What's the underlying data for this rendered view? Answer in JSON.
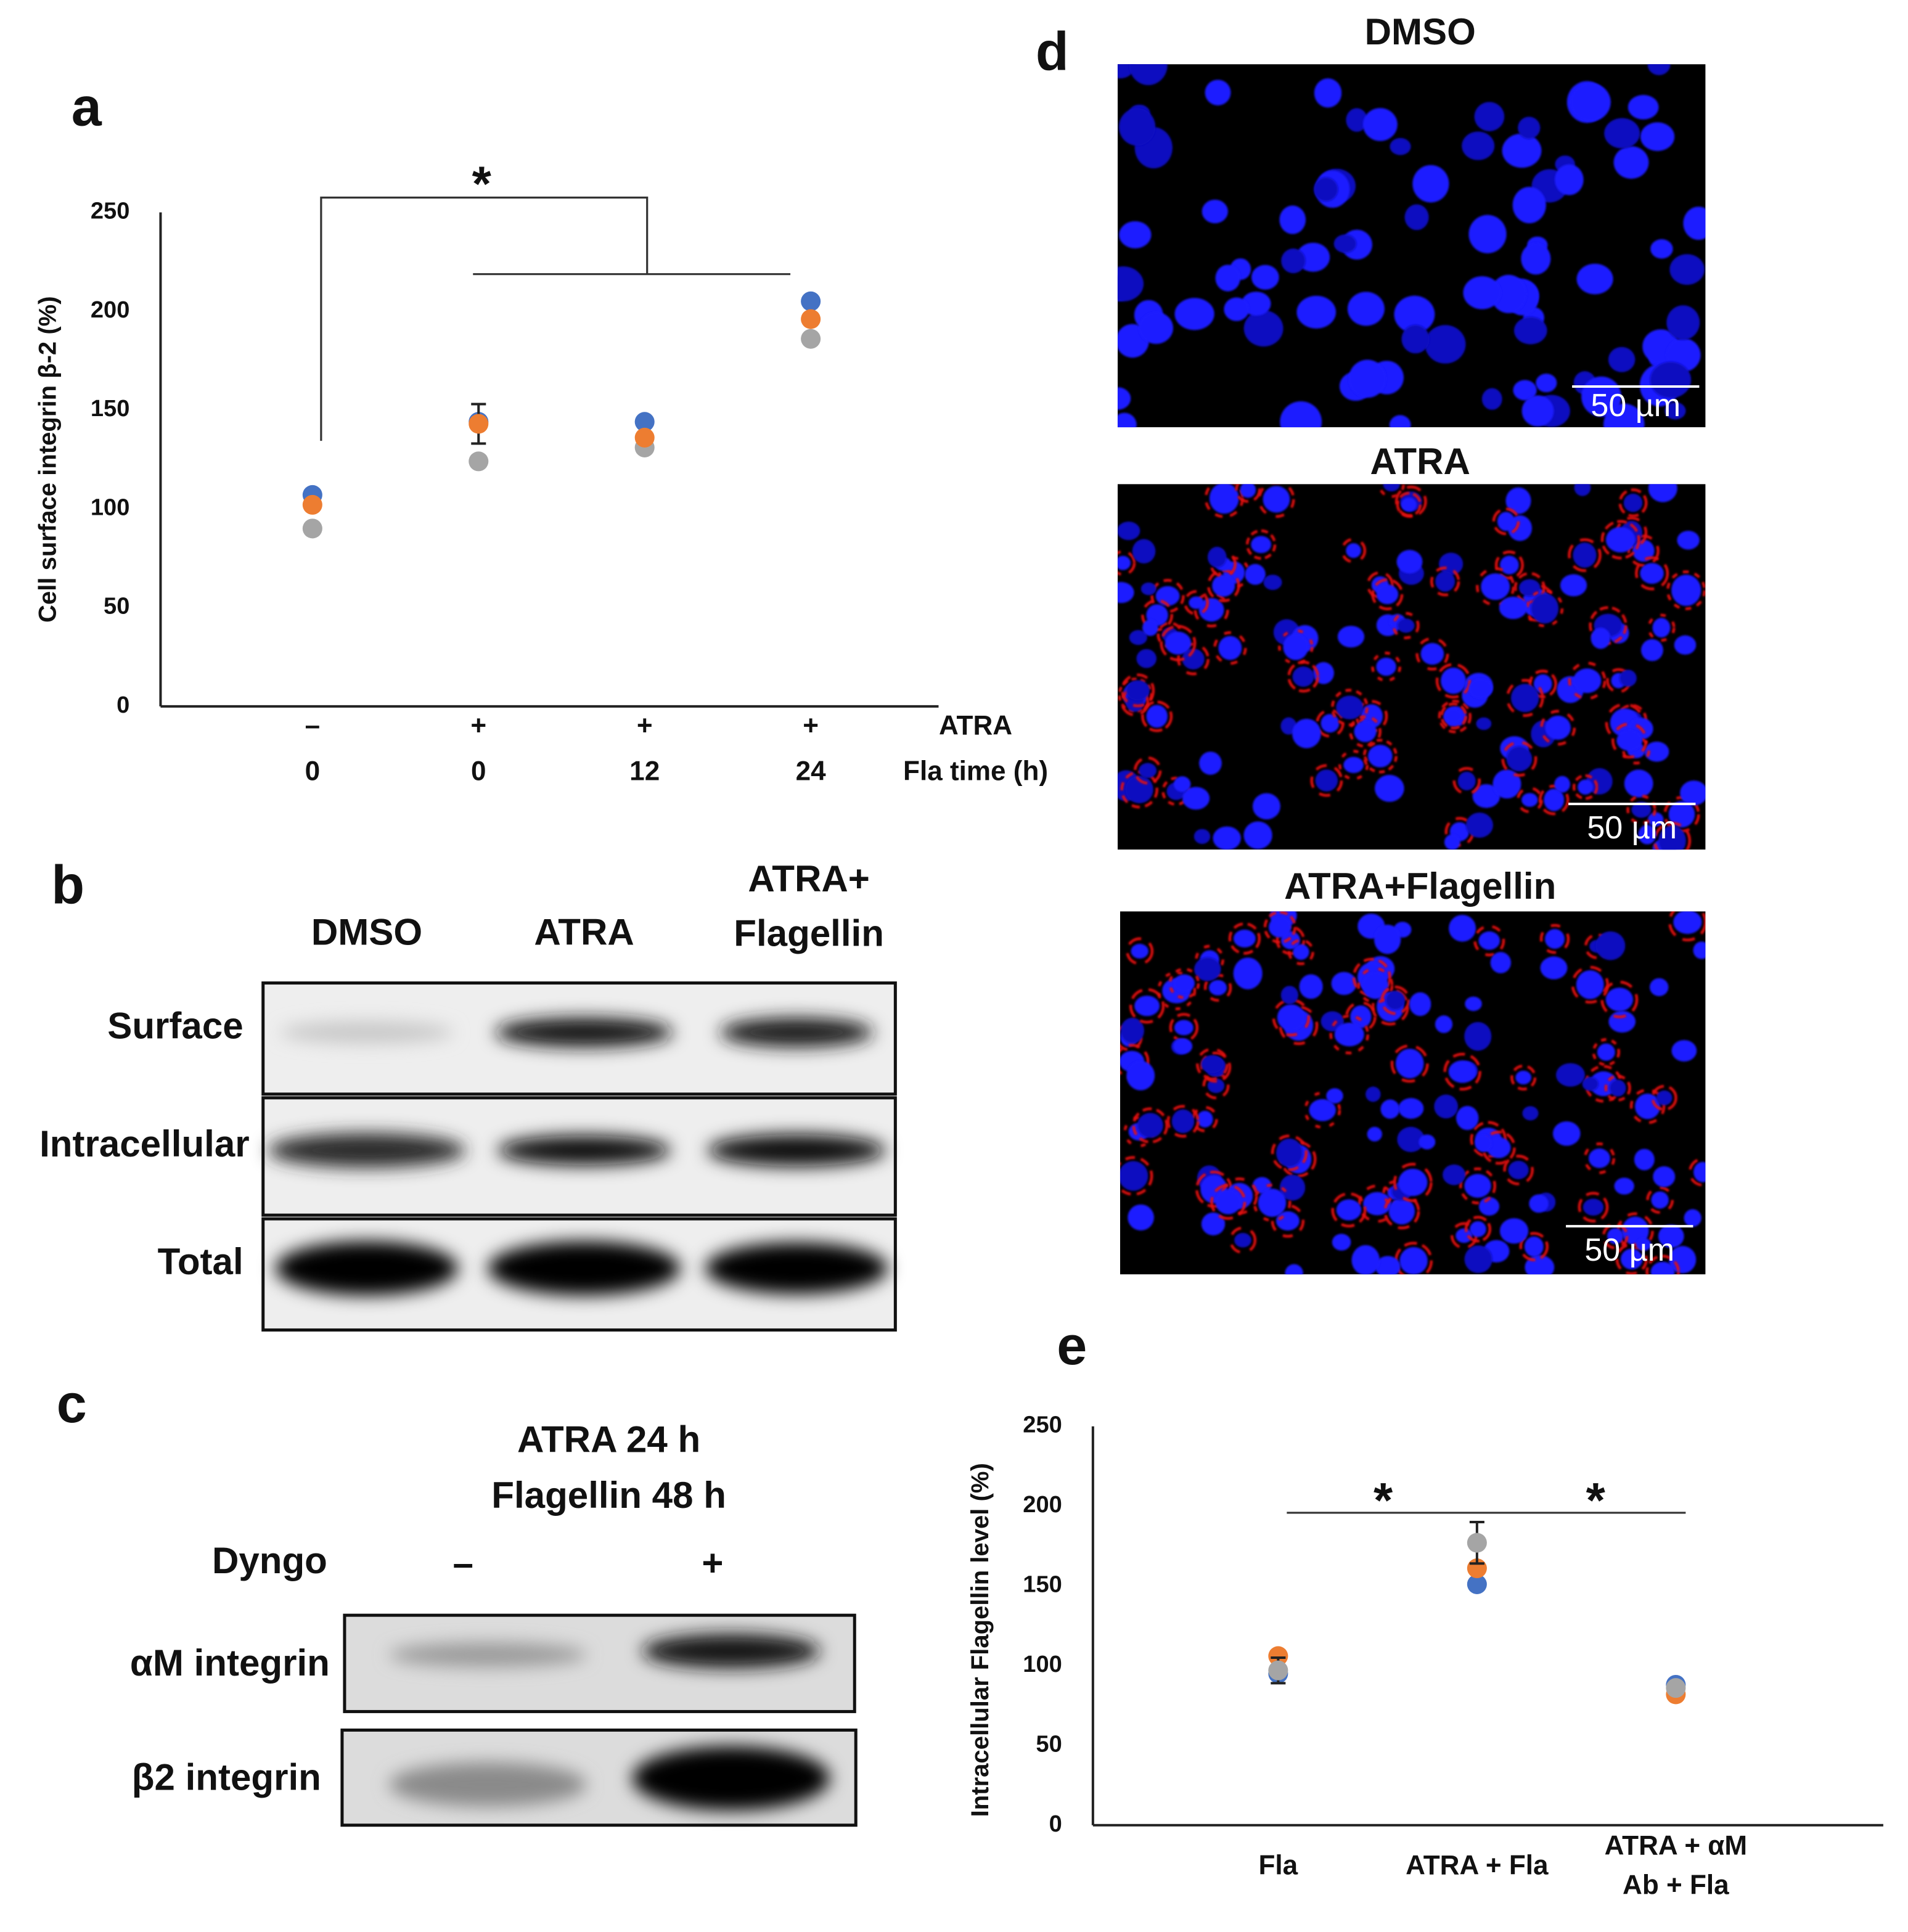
{
  "panel_labels": [
    "a",
    "b",
    "c",
    "d",
    "e"
  ],
  "chart_data": [
    {
      "type": "scatter",
      "y_label": "Cell surface integrin β-2 (%)",
      "ylim": [
        0,
        250
      ],
      "yticks": [
        0,
        50,
        100,
        150,
        200,
        250
      ],
      "atra_label": "ATRA",
      "atra_row": [
        "–",
        "+",
        "+",
        "+"
      ],
      "categories_label": "Fla time (h)",
      "categories": [
        [
          "0"
        ],
        [
          "0"
        ],
        [
          "12"
        ],
        [
          "24"
        ]
      ],
      "series": [
        {
          "color": "#4472c4",
          "values": [
            107,
            144,
            144,
            205
          ]
        },
        {
          "color": "#a5a5a5",
          "values": [
            90,
            124,
            131,
            186
          ]
        },
        {
          "color": "#ed7d31",
          "values": [
            102,
            143,
            136,
            196
          ],
          "errors": [
            null,
            10,
            null,
            null
          ]
        }
      ],
      "annotations": [
        "*"
      ]
    },
    {
      "type": "scatter",
      "y_label": "Intracellular  Flagellin level (%)",
      "ylim": [
        0,
        250
      ],
      "yticks": [
        0,
        50,
        100,
        150,
        200,
        250
      ],
      "categories": [
        [
          "Fla"
        ],
        [
          "ATRA + Fla"
        ],
        [
          "ATRA + αM",
          "Ab + Fla"
        ]
      ],
      "series": [
        {
          "color": "#4472c4",
          "values": [
            95,
            151,
            88
          ]
        },
        {
          "color": "#ed7d31",
          "values": [
            106,
            161,
            82
          ]
        },
        {
          "color": "#a5a5a5",
          "values": [
            97,
            177,
            86
          ],
          "errors": [
            8,
            13,
            null
          ]
        }
      ],
      "annotations": [
        "*",
        "*"
      ]
    }
  ],
  "blot_b": {
    "columns": [
      [
        "DMSO"
      ],
      [
        "ATRA"
      ],
      [
        "ATRA+",
        "Flagellin"
      ]
    ],
    "rows": [
      "Surface",
      "Intracellular",
      "Total"
    ]
  },
  "blot_c": {
    "title_lines": [
      "ATRA 24 h",
      "Flagellin 48 h"
    ],
    "treatment_label": "Dyngo",
    "lanes": [
      "–",
      "+"
    ],
    "rows": [
      "αM integrin",
      "β2 integrin"
    ]
  },
  "images_d": {
    "titles": [
      "DMSO",
      "ATRA",
      "ATRA+Flagellin"
    ],
    "scale_bars": [
      "50 µm",
      "50 µm",
      "50 µm"
    ]
  }
}
